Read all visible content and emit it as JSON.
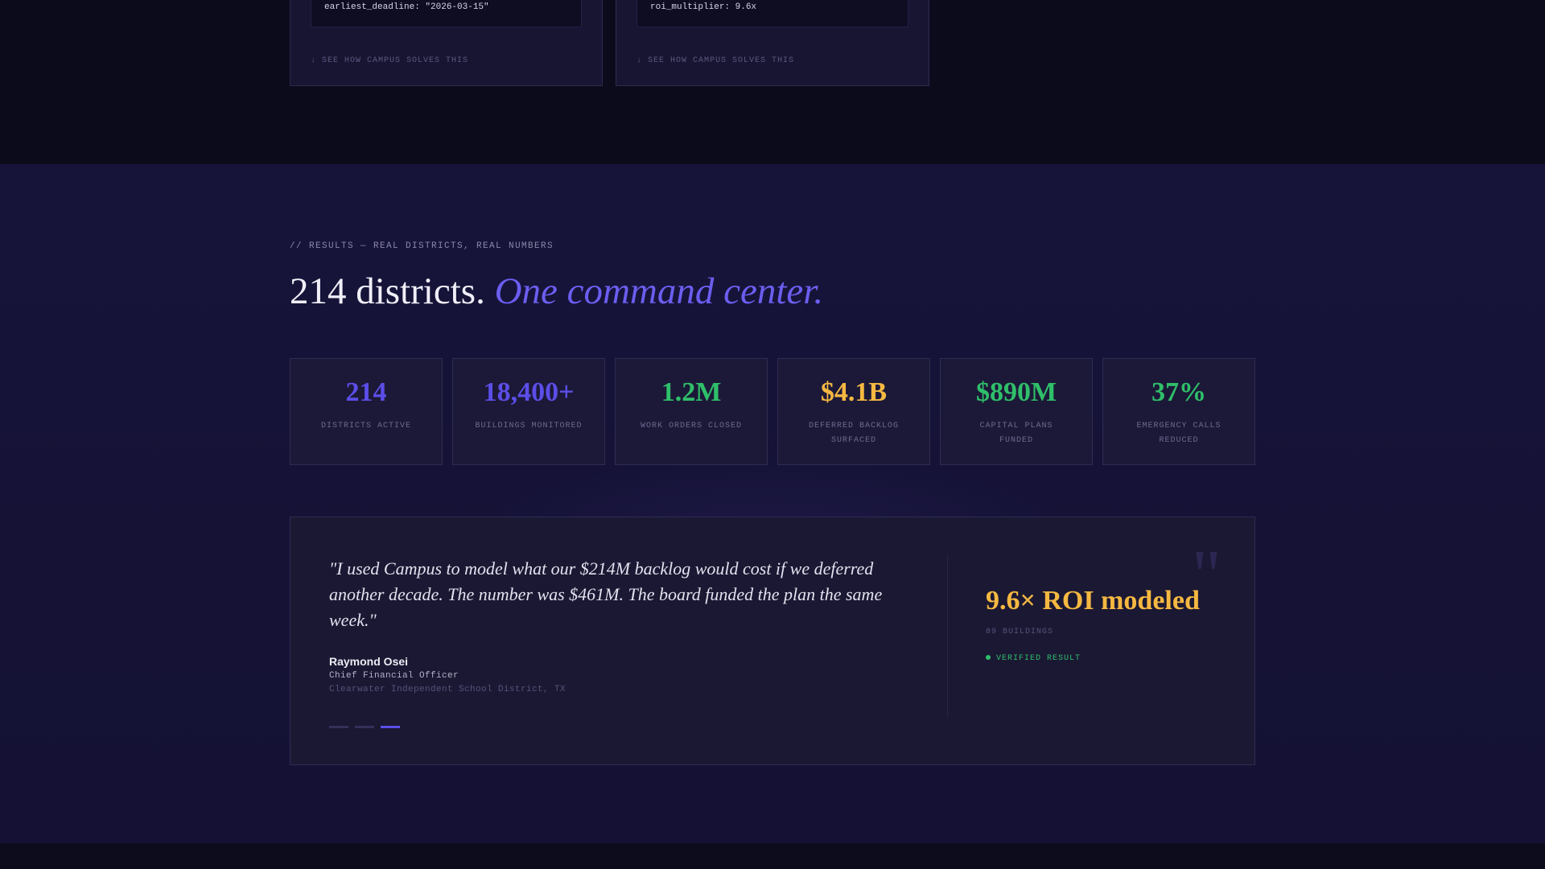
{
  "problem_cards": [
    {
      "code": "earliest_deadline: \"2026-03-15\"",
      "link": "↓ SEE HOW CAMPUS SOLVES THIS"
    },
    {
      "code": "roi_multiplier: 9.6x",
      "link": "↓ SEE HOW CAMPUS SOLVES THIS"
    }
  ],
  "results": {
    "eyebrow": "// RESULTS — REAL DISTRICTS, REAL NUMBERS",
    "headline_plain": "214 districts. ",
    "headline_accent": "One command center.",
    "stats": [
      {
        "value": "214",
        "label": "DISTRICTS ACTIVE",
        "color": "#5b4ee8"
      },
      {
        "value": "18,400+",
        "label": "BUILDINGS MONITORED",
        "color": "#5b4ee8"
      },
      {
        "value": "1.2M",
        "label": "WORK ORDERS CLOSED",
        "color": "#2fbf6a"
      },
      {
        "value": "$4.1B",
        "label": "DEFERRED BACKLOG SURFACED",
        "color": "#f5b841"
      },
      {
        "value": "$890M",
        "label": "CAPITAL PLANS FUNDED",
        "color": "#2fbf6a"
      },
      {
        "value": "37%",
        "label": "EMERGENCY CALLS REDUCED",
        "color": "#2fbf6a"
      }
    ]
  },
  "testimonial": {
    "quote": "\"I used Campus to model what our $214M backlog would cost if we deferred another decade. The number was $461M. The board funded the plan the same week.\"",
    "author_name": "Raymond Osei",
    "author_role": "Chief Financial Officer",
    "author_org": "Clearwater Independent School District, TX",
    "quote_mark": "\"",
    "roi_value": "9.6× ROI modeled",
    "roi_sub": "89 BUILDINGS",
    "verified_label": "VERIFIED RESULT",
    "carousel": {
      "count": 3,
      "active_index": 2
    }
  },
  "colors": {
    "accent_purple": "#5b4ee8",
    "accent_green": "#2fbf6a",
    "accent_gold": "#f5b841",
    "background": "#151236"
  }
}
